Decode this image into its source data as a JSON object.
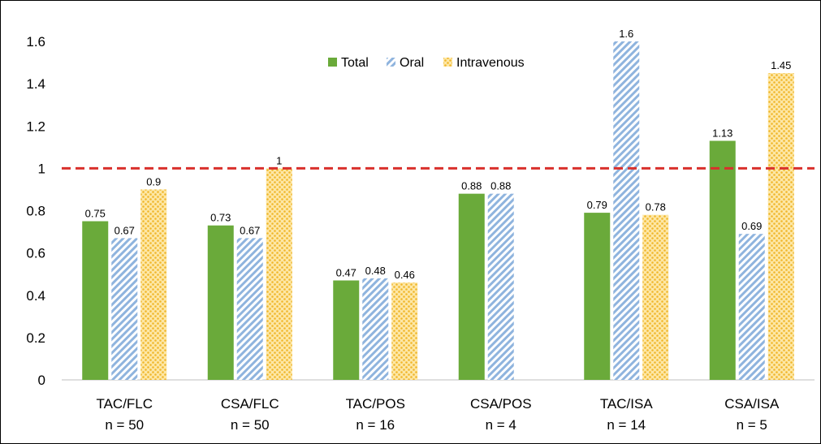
{
  "chart_data": {
    "type": "bar",
    "categories": [
      {
        "name": "TAC/FLC",
        "n": "n = 50"
      },
      {
        "name": "CSA/FLC",
        "n": "n = 50"
      },
      {
        "name": "TAC/POS",
        "n": "n = 16"
      },
      {
        "name": "CSA/POS",
        "n": "n = 4"
      },
      {
        "name": "TAC/ISA",
        "n": "n = 14"
      },
      {
        "name": "CSA/ISA",
        "n": "n = 5"
      }
    ],
    "series": [
      {
        "name": "Total",
        "color": "#6aaa3a",
        "pattern": "solid",
        "values": [
          0.75,
          0.73,
          0.47,
          0.88,
          0.79,
          1.13
        ],
        "labels": [
          "0.75",
          "0.73",
          "0.47",
          "0.88",
          "0.79",
          "1.13"
        ]
      },
      {
        "name": "Oral",
        "color": "#8fb4de",
        "pattern": "diagonal-stripes",
        "values": [
          0.67,
          0.67,
          0.48,
          0.88,
          1.6,
          0.69
        ],
        "labels": [
          "0.67",
          "0.67",
          "0.48",
          "0.88",
          "1.6",
          "0.69"
        ]
      },
      {
        "name": "Intravenous",
        "color": "#f5c242",
        "pattern": "dots",
        "values": [
          0.9,
          1,
          0.46,
          null,
          0.78,
          1.45
        ],
        "labels": [
          "0.9",
          "1",
          "0.46",
          "",
          "0.78",
          "1.45"
        ]
      }
    ],
    "ylim": [
      0,
      1.6
    ],
    "yticks": [
      "0",
      "0.2",
      "0.4",
      "0.6",
      "0.8",
      "1",
      "1.2",
      "1.4",
      "1.6"
    ],
    "reference_line": {
      "value": 1,
      "color": "#d9302c",
      "style": "dashed"
    },
    "grid": false,
    "legend": "top-center",
    "title": "",
    "xlabel": "",
    "ylabel": ""
  }
}
